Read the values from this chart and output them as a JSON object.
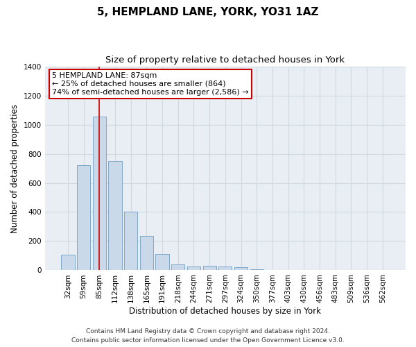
{
  "title": "5, HEMPLAND LANE, YORK, YO31 1AZ",
  "subtitle": "Size of property relative to detached houses in York",
  "xlabel": "Distribution of detached houses by size in York",
  "ylabel": "Number of detached properties",
  "categories": [
    "32sqm",
    "59sqm",
    "85sqm",
    "112sqm",
    "138sqm",
    "165sqm",
    "191sqm",
    "218sqm",
    "244sqm",
    "271sqm",
    "297sqm",
    "324sqm",
    "350sqm",
    "377sqm",
    "403sqm",
    "430sqm",
    "456sqm",
    "483sqm",
    "509sqm",
    "536sqm",
    "562sqm"
  ],
  "values": [
    105,
    720,
    1055,
    750,
    400,
    235,
    110,
    40,
    25,
    30,
    25,
    20,
    5,
    0,
    0,
    0,
    0,
    0,
    0,
    0,
    0
  ],
  "bar_color": "#c9d9ea",
  "bar_edgecolor": "#7fa8c8",
  "grid_color": "#d0d8e0",
  "background_color": "#e8eef4",
  "vline_x_index": 2,
  "vline_color": "#cc0000",
  "annotation_text": "5 HEMPLAND LANE: 87sqm\n← 25% of detached houses are smaller (864)\n74% of semi-detached houses are larger (2,586) →",
  "annotation_box_color": "#ffffff",
  "annotation_box_edgecolor": "#cc0000",
  "footer_line1": "Contains HM Land Registry data © Crown copyright and database right 2024.",
  "footer_line2": "Contains public sector information licensed under the Open Government Licence v3.0.",
  "ylim": [
    0,
    1400
  ],
  "yticks": [
    0,
    200,
    400,
    600,
    800,
    1000,
    1200,
    1400
  ],
  "title_fontsize": 11,
  "subtitle_fontsize": 9.5,
  "label_fontsize": 8.5,
  "tick_fontsize": 7.5,
  "annotation_fontsize": 8,
  "footer_fontsize": 6.5
}
